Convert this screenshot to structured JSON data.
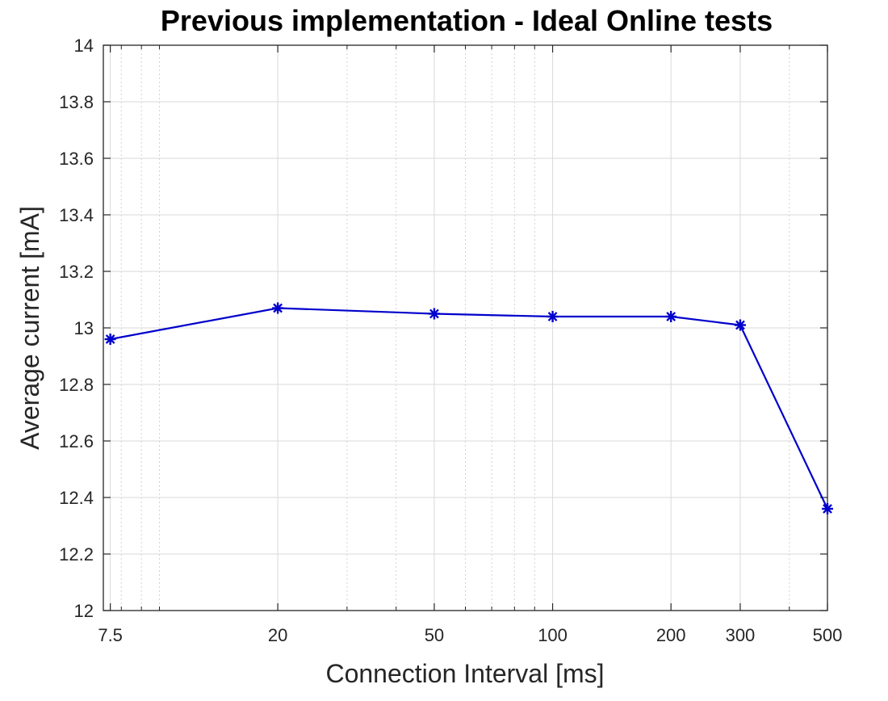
{
  "chart_data": {
    "type": "line",
    "title": "Previous implementation - Ideal Online tests",
    "xlabel": "Connection Interval [ms]",
    "ylabel": "Average current [mA]",
    "x_scale": "log",
    "xlim": [
      7.2,
      500
    ],
    "ylim": [
      12,
      14
    ],
    "x_ticks": [
      7.5,
      20,
      50,
      100,
      200,
      300,
      500
    ],
    "x_tick_labels": [
      "7.5",
      "20",
      "50",
      "100",
      "200",
      "300",
      "500"
    ],
    "y_ticks": [
      12,
      12.2,
      12.4,
      12.6,
      12.8,
      13,
      13.2,
      13.4,
      13.6,
      13.8,
      14
    ],
    "y_tick_labels": [
      "12",
      "12.2",
      "12.4",
      "12.6",
      "12.8",
      "13",
      "13.2",
      "13.4",
      "13.6",
      "13.8",
      "14"
    ],
    "grid": true,
    "series": [
      {
        "color": "#0000cc",
        "marker": "asterisk",
        "x": [
          7.5,
          20,
          50,
          100,
          200,
          300,
          500
        ],
        "y": [
          12.96,
          13.07,
          13.05,
          13.04,
          13.04,
          13.01,
          12.36
        ]
      }
    ]
  }
}
